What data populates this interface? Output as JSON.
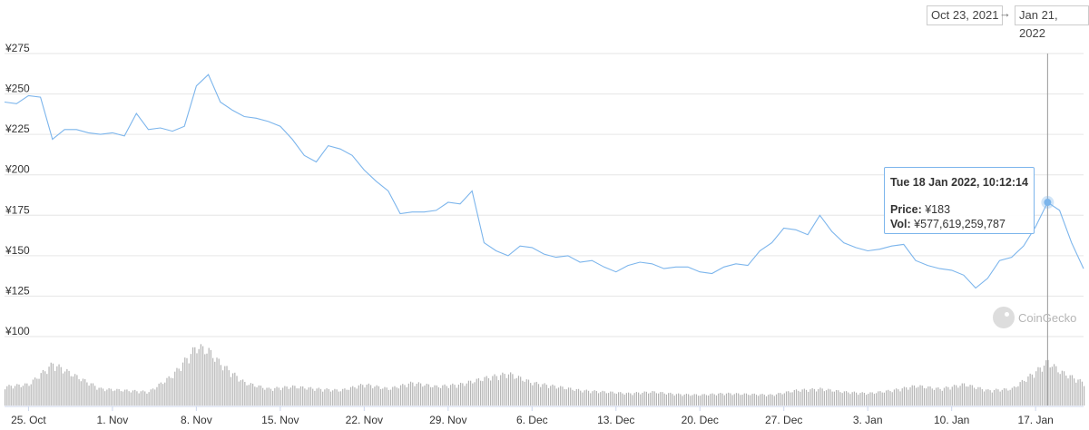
{
  "range": {
    "from": "Oct 23, 2021",
    "arrow": "→",
    "to": "Jan 21, 2022"
  },
  "tooltip": {
    "title": "Tue 18 Jan 2022, 10:12:14",
    "price_label": "Price:",
    "price_value": "¥183",
    "vol_label": "Vol:",
    "vol_value": "¥577,619,259,787"
  },
  "watermark": "CoinGecko",
  "colors": {
    "line": "#7cb5ec",
    "volume": "#b3b3b3",
    "grid": "#e6e6e6",
    "crosshair": "#999999"
  },
  "chart_data": {
    "type": "line",
    "y_ticks": [
      "¥275",
      "¥250",
      "¥225",
      "¥200",
      "¥175",
      "¥150",
      "¥125",
      "¥100"
    ],
    "ylim": [
      100,
      275
    ],
    "x_ticks": [
      "25. Oct",
      "1. Nov",
      "8. Nov",
      "15. Nov",
      "22. Nov",
      "29. Nov",
      "6. Dec",
      "13. Dec",
      "20. Dec",
      "27. Dec",
      "3. Jan",
      "10. Jan",
      "17. Jan"
    ],
    "xlim": [
      "2021-10-23",
      "2022-01-21"
    ],
    "grid": true,
    "price_series": {
      "x": [
        "2021-10-23",
        "2021-10-24",
        "2021-10-25",
        "2021-10-26",
        "2021-10-27",
        "2021-10-28",
        "2021-10-29",
        "2021-10-30",
        "2021-10-31",
        "2021-11-01",
        "2021-11-02",
        "2021-11-03",
        "2021-11-04",
        "2021-11-05",
        "2021-11-06",
        "2021-11-07",
        "2021-11-08",
        "2021-11-09",
        "2021-11-10",
        "2021-11-11",
        "2021-11-12",
        "2021-11-13",
        "2021-11-14",
        "2021-11-15",
        "2021-11-16",
        "2021-11-17",
        "2021-11-18",
        "2021-11-19",
        "2021-11-20",
        "2021-11-21",
        "2021-11-22",
        "2021-11-23",
        "2021-11-24",
        "2021-11-25",
        "2021-11-26",
        "2021-11-27",
        "2021-11-28",
        "2021-11-29",
        "2021-11-30",
        "2021-12-01",
        "2021-12-02",
        "2021-12-03",
        "2021-12-04",
        "2021-12-05",
        "2021-12-06",
        "2021-12-07",
        "2021-12-08",
        "2021-12-09",
        "2021-12-10",
        "2021-12-11",
        "2021-12-12",
        "2021-12-13",
        "2021-12-14",
        "2021-12-15",
        "2021-12-16",
        "2021-12-17",
        "2021-12-18",
        "2021-12-19",
        "2021-12-20",
        "2021-12-21",
        "2021-12-22",
        "2021-12-23",
        "2021-12-24",
        "2021-12-25",
        "2021-12-26",
        "2021-12-27",
        "2021-12-28",
        "2021-12-29",
        "2021-12-30",
        "2021-12-31",
        "2022-01-01",
        "2022-01-02",
        "2022-01-03",
        "2022-01-04",
        "2022-01-05",
        "2022-01-06",
        "2022-01-07",
        "2022-01-08",
        "2022-01-09",
        "2022-01-10",
        "2022-01-11",
        "2022-01-12",
        "2022-01-13",
        "2022-01-14",
        "2022-01-15",
        "2022-01-16",
        "2022-01-17",
        "2022-01-18",
        "2022-01-19",
        "2022-01-20",
        "2022-01-21"
      ],
      "y": [
        245,
        244,
        249,
        248,
        222,
        228,
        228,
        226,
        225,
        226,
        224,
        238,
        228,
        229,
        227,
        230,
        255,
        262,
        245,
        240,
        236,
        235,
        233,
        230,
        222,
        212,
        208,
        218,
        216,
        212,
        203,
        196,
        190,
        176,
        177,
        177,
        178,
        183,
        182,
        190,
        158,
        153,
        150,
        156,
        155,
        151,
        149,
        150,
        146,
        147,
        143,
        140,
        144,
        146,
        145,
        142,
        143,
        143,
        140,
        139,
        143,
        145,
        144,
        153,
        158,
        167,
        166,
        163,
        175,
        165,
        158,
        155,
        153,
        154,
        156,
        157,
        147,
        144,
        142,
        141,
        138,
        130,
        136,
        147,
        149,
        156,
        168,
        183,
        178,
        158,
        142
      ]
    },
    "volume_series": {
      "x": [
        "2021-10-23",
        "2021-10-25",
        "2021-10-27",
        "2021-10-29",
        "2021-10-31",
        "2021-11-02",
        "2021-11-04",
        "2021-11-06",
        "2021-11-08",
        "2021-11-09",
        "2021-11-10",
        "2021-11-12",
        "2021-11-14",
        "2021-11-16",
        "2021-11-18",
        "2021-11-20",
        "2021-11-22",
        "2021-11-24",
        "2021-11-26",
        "2021-11-28",
        "2021-11-30",
        "2021-12-02",
        "2021-12-04",
        "2021-12-06",
        "2021-12-08",
        "2021-12-10",
        "2021-12-12",
        "2021-12-14",
        "2021-12-16",
        "2021-12-18",
        "2021-12-20",
        "2021-12-22",
        "2021-12-24",
        "2021-12-26",
        "2021-12-28",
        "2021-12-30",
        "2022-01-01",
        "2022-01-03",
        "2022-01-05",
        "2022-01-07",
        "2022-01-09",
        "2022-01-11",
        "2022-01-13",
        "2022-01-15",
        "2022-01-17",
        "2022-01-18",
        "2022-01-19",
        "2022-01-21"
      ],
      "y": [
        0.25,
        0.28,
        0.55,
        0.38,
        0.22,
        0.2,
        0.18,
        0.4,
        0.78,
        0.72,
        0.55,
        0.3,
        0.22,
        0.25,
        0.22,
        0.2,
        0.28,
        0.22,
        0.3,
        0.25,
        0.28,
        0.36,
        0.42,
        0.3,
        0.25,
        0.2,
        0.18,
        0.16,
        0.18,
        0.15,
        0.14,
        0.16,
        0.15,
        0.14,
        0.2,
        0.22,
        0.18,
        0.16,
        0.2,
        0.26,
        0.22,
        0.28,
        0.2,
        0.22,
        0.45,
        0.58,
        0.45,
        0.3
      ]
    },
    "highlight": {
      "x": "2022-01-18",
      "y": 183
    }
  }
}
